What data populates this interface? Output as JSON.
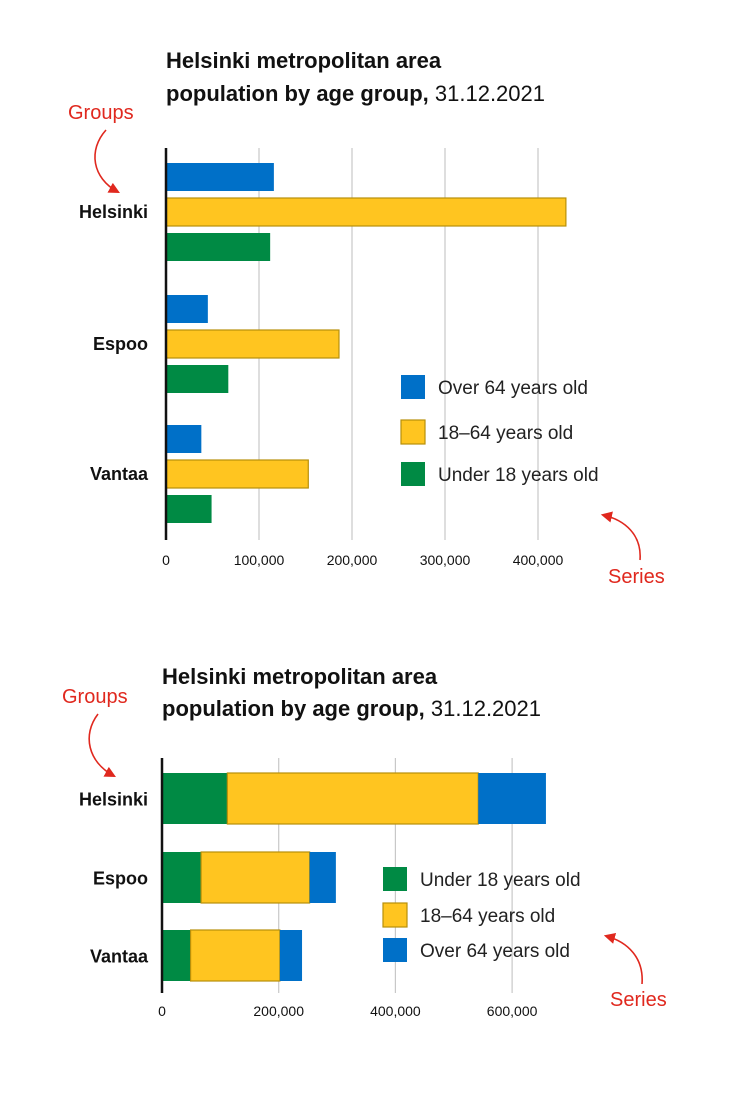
{
  "colors": {
    "over64": "#0070c8",
    "age18_64": "#ffc520",
    "age18_64_border": "#b8900a",
    "under18": "#008a44",
    "annotation": "#e0281e",
    "grid": "#c8c8c8"
  },
  "chart_data": [
    {
      "type": "bar",
      "orientation": "horizontal",
      "mode": "grouped",
      "title_bold": "Helsinki metropolitan area population by age group,",
      "title_light": "31.12.2021",
      "title_lines": [
        "Helsinki metropolitan area",
        "population by age group,"
      ],
      "categories": [
        "Helsinki",
        "Espoo",
        "Vantaa"
      ],
      "series": [
        {
          "name": "Over 64 years old",
          "key": "over64",
          "values": [
            116000,
            45000,
            38000
          ]
        },
        {
          "name": "18–64 years old",
          "key": "age18_64",
          "values": [
            430000,
            186000,
            153000
          ]
        },
        {
          "name": "Under 18  years old",
          "key": "under18",
          "values": [
            112000,
            67000,
            49000
          ]
        }
      ],
      "xticks": [
        "0",
        "100,000",
        "200,000",
        "300,000",
        "400,000"
      ],
      "xtick_values": [
        0,
        100000,
        200000,
        300000,
        400000
      ],
      "xlim": [
        0,
        440000
      ],
      "grid": true,
      "legend_position": "bottom-right",
      "annotations": [
        "Groups",
        "Series"
      ]
    },
    {
      "type": "bar",
      "orientation": "horizontal",
      "mode": "stacked",
      "title_bold": "Helsinki metropolitan area population by age group,",
      "title_light": "31.12.2021",
      "title_lines": [
        "Helsinki metropolitan area",
        "population by age group,"
      ],
      "categories": [
        "Helsinki",
        "Espoo",
        "Vantaa"
      ],
      "series": [
        {
          "name": "Under 18 years old",
          "key": "under18",
          "values": [
            112000,
            67000,
            49000
          ]
        },
        {
          "name": "18–64  years old",
          "key": "age18_64",
          "values": [
            430000,
            186000,
            153000
          ]
        },
        {
          "name": "Over 64 years old",
          "key": "over64",
          "values": [
            116000,
            45000,
            38000
          ]
        }
      ],
      "xticks": [
        "0",
        "200,000",
        "400,000",
        "600,000"
      ],
      "xtick_values": [
        0,
        200000,
        400000,
        600000
      ],
      "xlim": [
        0,
        680000
      ],
      "grid": true,
      "legend_position": "bottom-right",
      "annotations": [
        "Groups",
        "Series"
      ]
    }
  ]
}
